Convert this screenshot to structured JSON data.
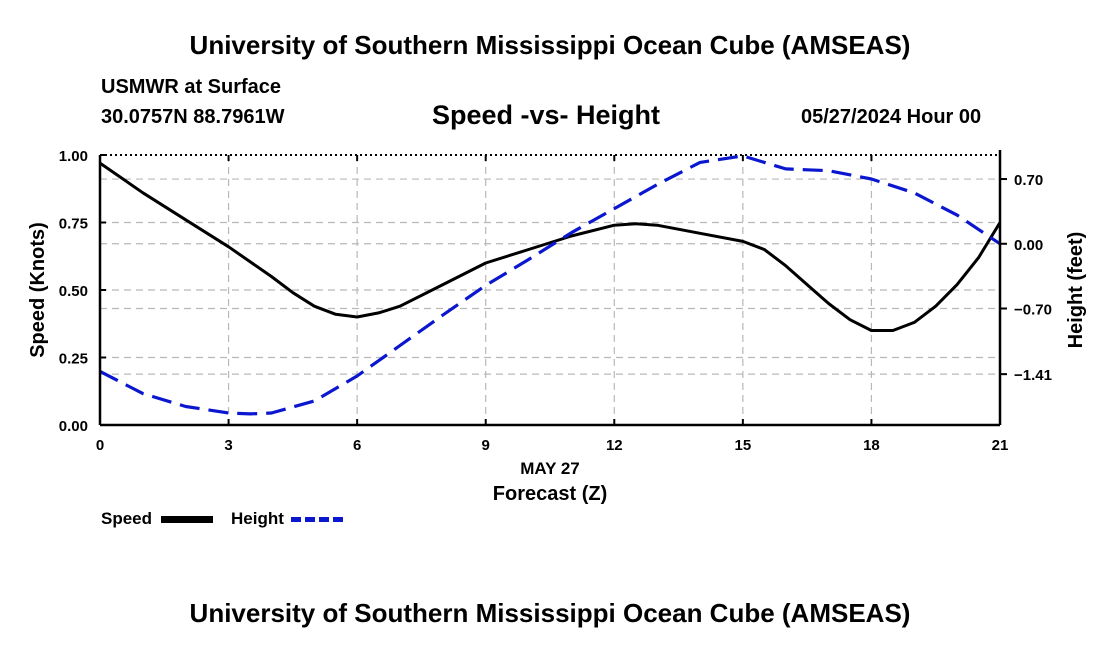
{
  "header": {
    "title": "University of Southern Mississippi Ocean Cube (AMSEAS)",
    "station": "USMWR at Surface",
    "coords": "30.0757N  88.7961W",
    "subtitle": "Speed -vs- Height",
    "datetime": "05/27/2024 Hour 00"
  },
  "footer": {
    "title": "University of Southern Mississippi Ocean Cube (AMSEAS)"
  },
  "legend": {
    "speed_label": "Speed",
    "height_label": "Height"
  },
  "colors": {
    "speed": "#000000",
    "height": "#0b17cf",
    "grid": "#b8b8b8"
  },
  "chart_data": {
    "type": "line",
    "title": "Speed -vs- Height",
    "xlabel": "Forecast (Z)",
    "xlabel_date": "MAY 27",
    "ylabel": "Speed (Knots)",
    "y2label": "Height (feet)",
    "xlim": [
      0,
      21
    ],
    "ylim": [
      0,
      1
    ],
    "y2lim": [
      -1.96,
      0.96
    ],
    "x_ticks": [
      0,
      3,
      6,
      9,
      12,
      15,
      18,
      21
    ],
    "x_tick_labels": [
      "0",
      "3",
      "6",
      "9",
      "12",
      "15",
      "18",
      "21"
    ],
    "y_ticks": [
      0,
      0.25,
      0.5,
      0.75,
      1.0
    ],
    "y_tick_labels": [
      "0.00",
      "0.25",
      "0.50",
      "0.75",
      "1.00"
    ],
    "y2_ticks": [
      0.7,
      0.0,
      -0.7,
      -1.41
    ],
    "y2_tick_labels": [
      "0.70",
      "0.00",
      "−0.70",
      "−1.41"
    ],
    "grid": true,
    "series": [
      {
        "name": "Speed",
        "axis": "left",
        "style": "solid",
        "x": [
          0,
          1,
          2,
          3,
          4,
          4.5,
          5,
          5.5,
          6,
          6.5,
          7,
          8,
          9,
          10,
          11,
          12,
          12.5,
          13,
          14,
          15,
          15.5,
          16,
          16.5,
          17,
          17.5,
          18,
          18.5,
          19,
          19.5,
          20,
          20.5,
          21
        ],
        "values": [
          0.97,
          0.86,
          0.76,
          0.66,
          0.55,
          0.49,
          0.44,
          0.41,
          0.4,
          0.415,
          0.44,
          0.52,
          0.6,
          0.65,
          0.7,
          0.74,
          0.745,
          0.74,
          0.71,
          0.68,
          0.65,
          0.59,
          0.52,
          0.45,
          0.39,
          0.35,
          0.35,
          0.38,
          0.44,
          0.52,
          0.62,
          0.75
        ]
      },
      {
        "name": "Height",
        "axis": "right",
        "style": "dashed",
        "x": [
          0,
          1,
          2,
          3,
          3.5,
          4,
          5,
          6,
          7,
          8,
          9,
          10,
          11,
          12,
          13,
          14,
          15,
          16,
          16.5,
          17,
          18,
          19,
          20,
          21
        ],
        "values": [
          -1.38,
          -1.62,
          -1.76,
          -1.83,
          -1.84,
          -1.83,
          -1.7,
          -1.43,
          -1.1,
          -0.77,
          -0.45,
          -0.17,
          0.12,
          0.38,
          0.64,
          0.88,
          0.95,
          0.81,
          0.8,
          0.79,
          0.7,
          0.55,
          0.31,
          0.0
        ]
      }
    ]
  }
}
